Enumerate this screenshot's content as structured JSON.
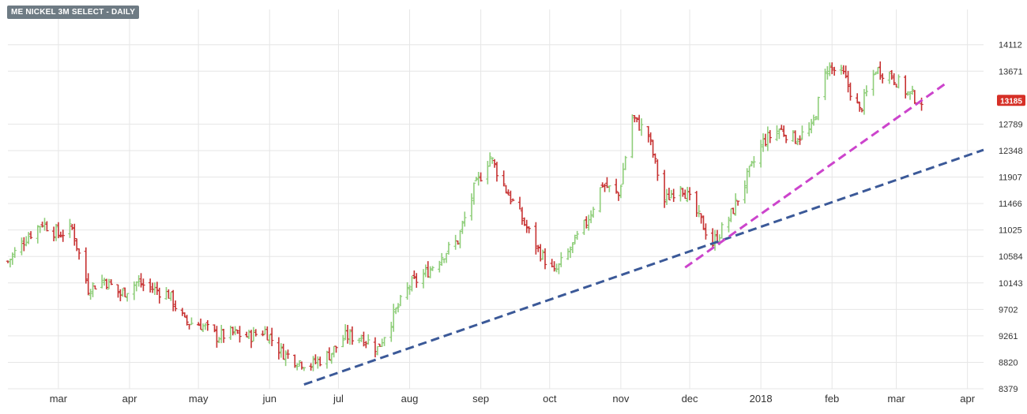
{
  "chart_data": {
    "type": "ohlc",
    "title": "ME NICKEL 3M SELECT - DAILY",
    "last_price": 13185,
    "last_price_color": "#d63027",
    "up_color": "#8fce7a",
    "down_color": "#c73232",
    "y_ticks": [
      8379,
      8820,
      9261,
      9702,
      10143,
      10584,
      11025,
      11466,
      11907,
      12348,
      12789,
      13671,
      14112
    ],
    "ylim": [
      8379,
      14700
    ],
    "x_month_labels": [
      "mar",
      "apr",
      "may",
      "jun",
      "jul",
      "aug",
      "sep",
      "oct",
      "nov",
      "dec",
      "2018",
      "feb",
      "mar",
      "apr"
    ],
    "x_month_dates": [
      "2017-03-01",
      "2017-04-01",
      "2017-05-01",
      "2017-06-01",
      "2017-07-01",
      "2017-08-01",
      "2017-09-01",
      "2017-10-01",
      "2017-11-01",
      "2017-12-01",
      "2018-01-01",
      "2018-02-01",
      "2018-03-01",
      "2018-04-01"
    ],
    "xlim": [
      "2017-02-07",
      "2018-04-08"
    ],
    "grid": true,
    "close_path": [
      [
        "2017-02-07",
        10500
      ],
      [
        "2017-02-15",
        10900
      ],
      [
        "2017-02-22",
        11150
      ],
      [
        "2017-03-01",
        10950
      ],
      [
        "2017-03-07",
        11050
      ],
      [
        "2017-03-14",
        10050
      ],
      [
        "2017-03-21",
        10200
      ],
      [
        "2017-03-28",
        9950
      ],
      [
        "2017-04-04",
        10150
      ],
      [
        "2017-04-11",
        10050
      ],
      [
        "2017-04-18",
        9950
      ],
      [
        "2017-04-25",
        9500
      ],
      [
        "2017-05-02",
        9450
      ],
      [
        "2017-05-09",
        9250
      ],
      [
        "2017-05-16",
        9300
      ],
      [
        "2017-05-23",
        9250
      ],
      [
        "2017-05-30",
        9350
      ],
      [
        "2017-06-06",
        9000
      ],
      [
        "2017-06-13",
        8850
      ],
      [
        "2017-06-19",
        8780
      ],
      [
        "2017-06-27",
        8950
      ],
      [
        "2017-07-04",
        9250
      ],
      [
        "2017-07-11",
        9250
      ],
      [
        "2017-07-18",
        9050
      ],
      [
        "2017-07-25",
        9600
      ],
      [
        "2017-08-01",
        10100
      ],
      [
        "2017-08-08",
        10300
      ],
      [
        "2017-08-15",
        10600
      ],
      [
        "2017-08-22",
        10850
      ],
      [
        "2017-08-29",
        11700
      ],
      [
        "2017-09-05",
        12250
      ],
      [
        "2017-09-12",
        11700
      ],
      [
        "2017-09-19",
        11200
      ],
      [
        "2017-09-26",
        10700
      ],
      [
        "2017-10-03",
        10300
      ],
      [
        "2017-10-10",
        10700
      ],
      [
        "2017-10-17",
        11150
      ],
      [
        "2017-10-24",
        11800
      ],
      [
        "2017-10-31",
        11600
      ],
      [
        "2017-11-06",
        12900
      ],
      [
        "2017-11-13",
        12600
      ],
      [
        "2017-11-20",
        11500
      ],
      [
        "2017-11-27",
        11800
      ],
      [
        "2017-12-04",
        11300
      ],
      [
        "2017-12-11",
        10800
      ],
      [
        "2017-12-18",
        11200
      ],
      [
        "2017-12-26",
        11900
      ],
      [
        "2018-01-02",
        12500
      ],
      [
        "2018-01-09",
        12700
      ],
      [
        "2018-01-16",
        12550
      ],
      [
        "2018-01-23",
        12700
      ],
      [
        "2018-01-30",
        13750
      ],
      [
        "2018-02-06",
        13600
      ],
      [
        "2018-02-13",
        13000
      ],
      [
        "2018-02-20",
        13700
      ],
      [
        "2018-02-27",
        13600
      ],
      [
        "2018-03-06",
        13300
      ],
      [
        "2018-03-12",
        13185
      ]
    ],
    "trendlines": [
      {
        "color": "#3b5998",
        "start": [
          "2017-06-16",
          8450
        ],
        "end": [
          "2018-04-08",
          12360
        ]
      },
      {
        "color": "#cc44cc",
        "start": [
          "2017-11-29",
          10400
        ],
        "end": [
          "2018-03-23",
          13480
        ]
      }
    ]
  }
}
